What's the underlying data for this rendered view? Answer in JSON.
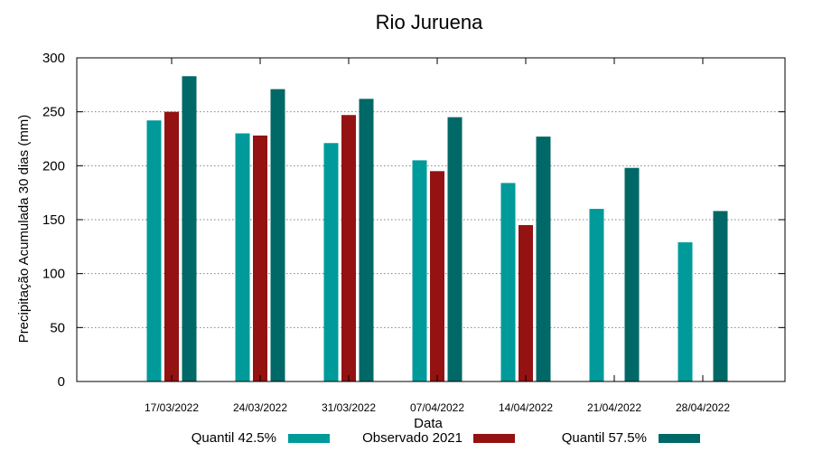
{
  "chart_data": {
    "type": "bar",
    "title": "Rio Juruena",
    "xlabel": "Data",
    "ylabel": "Precipitação Acumulada 30 dias (mm)",
    "ylim": [
      0,
      300
    ],
    "yticks": [
      0,
      50,
      100,
      150,
      200,
      250,
      300
    ],
    "grid": true,
    "legend_position": "bottom",
    "categories": [
      "17/03/2022",
      "24/03/2022",
      "31/03/2022",
      "07/04/2022",
      "14/04/2022",
      "21/04/2022",
      "28/04/2022"
    ],
    "series": [
      {
        "name": "Quantil 42.5%",
        "color": "#009a9a",
        "values": [
          242,
          230,
          221,
          205,
          184,
          160,
          129
        ]
      },
      {
        "name": "Observado 2021",
        "color": "#941212",
        "values": [
          250,
          228,
          247,
          195,
          145,
          null,
          null
        ]
      },
      {
        "name": "Quantil 57.5%",
        "color": "#006866",
        "values": [
          283,
          271,
          262,
          245,
          227,
          198,
          158
        ]
      }
    ]
  }
}
